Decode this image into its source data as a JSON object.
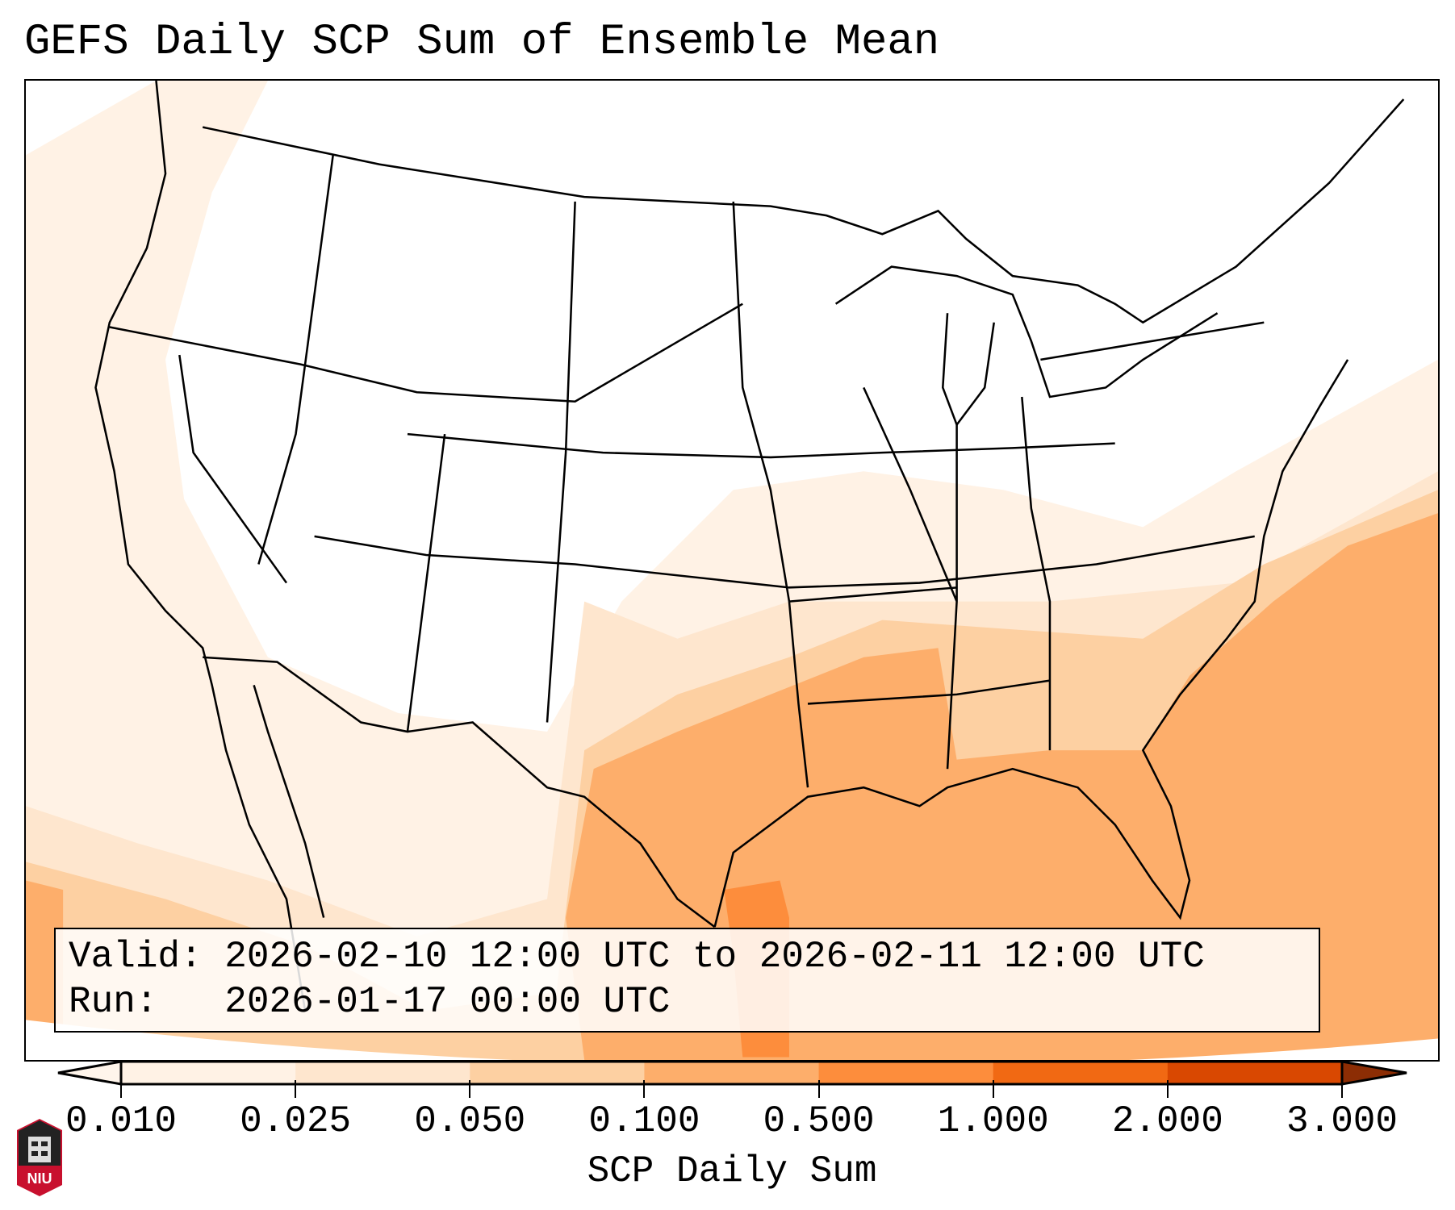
{
  "title": "GEFS Daily SCP Sum of Ensemble Mean",
  "info": {
    "valid_label": "Valid:",
    "valid_value": "2026-02-10 12:00 UTC to 2026-02-11 12:00 UTC",
    "run_label": "Run:",
    "run_value": "2026-01-17 00:00 UTC"
  },
  "colorbar": {
    "label": "SCP Daily Sum",
    "ticks": [
      "0.010",
      "0.025",
      "0.050",
      "0.100",
      "0.500",
      "1.000",
      "2.000",
      "3.000"
    ],
    "colors": [
      "#fff2e5",
      "#fee6ce",
      "#fdd0a2",
      "#fdae6b",
      "#fd8d3c",
      "#f16913",
      "#d94801"
    ],
    "under_color": "#fff5eb",
    "over_color": "#8c2d04"
  },
  "logo": {
    "text": "NIU",
    "color": "#c8102e"
  }
}
